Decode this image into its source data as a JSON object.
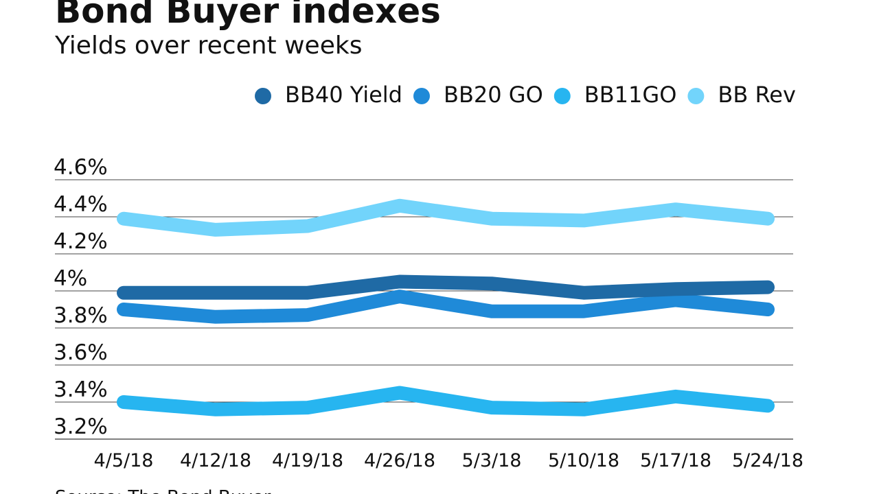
{
  "chart_data": {
    "type": "line",
    "title": "Bond Buyer indexes",
    "subtitle": "Yields over recent weeks",
    "source": "Source: The Bond Buyer",
    "categories": [
      "4/5/18",
      "4/12/18",
      "4/19/18",
      "4/26/18",
      "5/3/18",
      "5/10/18",
      "5/17/18",
      "5/24/18"
    ],
    "series": [
      {
        "name": "BB40 Yield",
        "color": "#1f6aa5",
        "values": [
          3.99,
          3.99,
          3.99,
          4.05,
          4.04,
          3.99,
          4.01,
          4.02
        ]
      },
      {
        "name": "BB20 GO",
        "color": "#1f8ad8",
        "values": [
          3.9,
          3.86,
          3.87,
          3.97,
          3.89,
          3.89,
          3.95,
          3.9
        ]
      },
      {
        "name": "BB11GO",
        "color": "#27b5f0",
        "values": [
          3.4,
          3.36,
          3.37,
          3.45,
          3.37,
          3.36,
          3.43,
          3.38
        ]
      },
      {
        "name": "BB Rev",
        "color": "#72d4fb",
        "values": [
          4.39,
          4.33,
          4.35,
          4.46,
          4.39,
          4.38,
          4.44,
          4.39
        ]
      }
    ],
    "ylim": [
      3.2,
      4.6
    ],
    "yticks": [
      {
        "value": 3.2,
        "label": "3.2%"
      },
      {
        "value": 3.4,
        "label": "3.4%"
      },
      {
        "value": 3.6,
        "label": "3.6%"
      },
      {
        "value": 3.8,
        "label": "3.8%"
      },
      {
        "value": 4,
        "label": "4%"
      },
      {
        "value": 4.2,
        "label": "4.2%"
      },
      {
        "value": 4.4,
        "label": "4.4%"
      },
      {
        "value": 4.6,
        "label": "4.6%"
      }
    ],
    "grid": true
  }
}
